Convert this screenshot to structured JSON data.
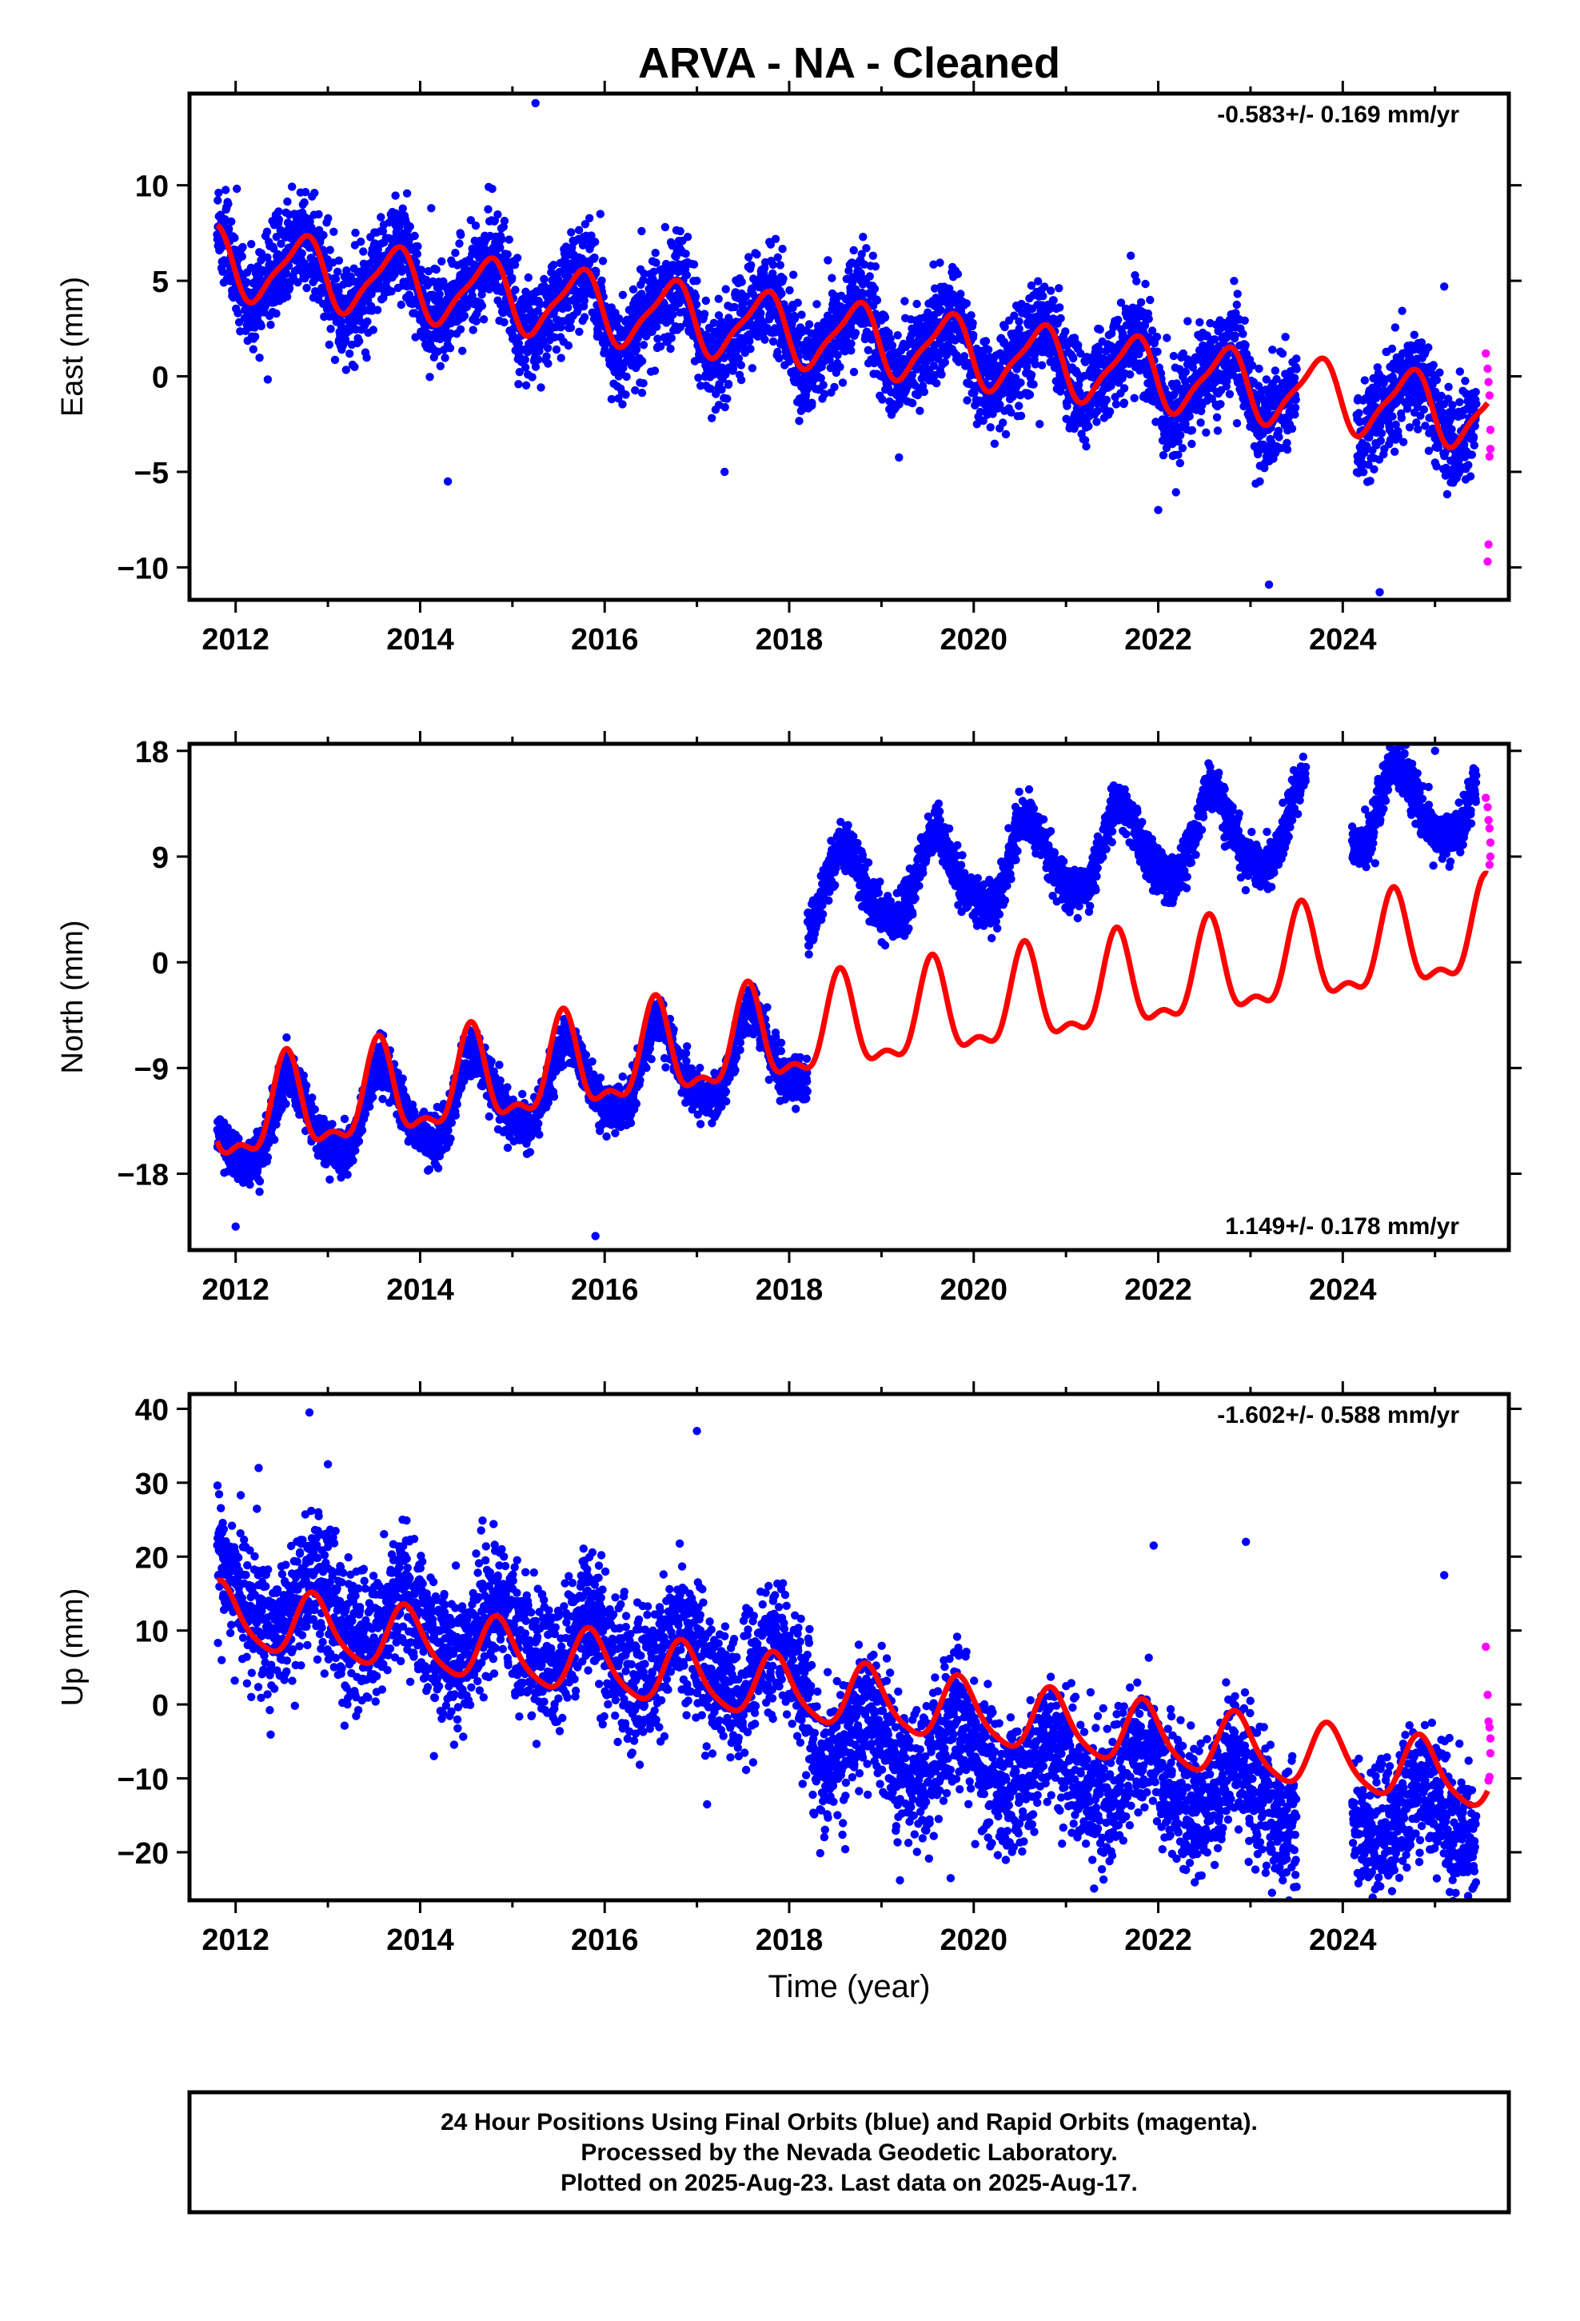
{
  "title": "ARVA  - NA - Cleaned",
  "footer": {
    "line1": "24 Hour Positions Using Final Orbits (blue) and Rapid Orbits (magenta).",
    "line2": "Processed by the Nevada Geodetic Laboratory.",
    "line3": "Plotted on 2025-Aug-23. Last data on 2025-Aug-17."
  },
  "colors": {
    "final": "#0000ff",
    "rapid": "#ff00ff",
    "model": "#ff0000",
    "frame": "#000000"
  },
  "chart_data": [
    {
      "type": "scatter",
      "panel": "east",
      "ylabel": "East (mm)",
      "xlabel": "",
      "rate_label": "-0.583+/- 0.169 mm/yr",
      "rate_position": "top-right",
      "xlim": [
        2011.5,
        2025.8
      ],
      "ylim": [
        -11.7,
        14.8
      ],
      "xticks": [
        2012,
        2014,
        2016,
        2018,
        2020,
        2022,
        2024
      ],
      "xtick_labels": [
        "2012",
        "2014",
        "2016",
        "2018",
        "2020",
        "2022",
        "2024"
      ],
      "yticks": [
        -10,
        -5,
        0,
        5,
        10
      ],
      "ytick_labels": [
        "−10",
        "−5",
        "0",
        "5",
        "10"
      ],
      "data_span": [
        2011.8,
        2025.45
      ],
      "gaps": [
        [
          2023.5,
          2024.15
        ]
      ],
      "model": {
        "offset_2018": 2.4,
        "rate_mm_yr": -0.583,
        "annual_amp": 1.75,
        "annual_phase_year": 0.72,
        "semiannual_amp": 0.45,
        "semiannual_phase_year": 0.35,
        "steps": []
      },
      "scatter_std": 1.3,
      "outliers": [
        [
          2015.25,
          14.3
        ],
        [
          2013.7,
          8.6
        ],
        [
          2014.12,
          8.8
        ],
        [
          2016.4,
          7.6
        ],
        [
          2016.9,
          7.3
        ],
        [
          2017.8,
          6.9
        ],
        [
          2018.8,
          7.3
        ],
        [
          2020.75,
          4.2
        ],
        [
          2025.1,
          4.7
        ],
        [
          2014.3,
          -5.5
        ],
        [
          2017.3,
          -5.0
        ],
        [
          2022.0,
          -7.0
        ],
        [
          2023.2,
          -10.9
        ],
        [
          2024.4,
          -11.3
        ]
      ],
      "rapid": {
        "x": [
          2025.55,
          2025.57,
          2025.58,
          2025.59,
          2025.6,
          2025.6,
          2025.59,
          2025.58,
          2025.57
        ],
        "y": [
          1.2,
          0.4,
          -0.3,
          -1.0,
          -2.8,
          -3.8,
          -4.2,
          -8.8,
          -9.7
        ]
      }
    },
    {
      "type": "scatter",
      "panel": "north",
      "ylabel": "North (mm)",
      "xlabel": "",
      "rate_label": "1.149+/- 0.178 mm/yr",
      "rate_position": "bottom-right",
      "xlim": [
        2011.5,
        2025.8
      ],
      "ylim": [
        -24.5,
        18.6
      ],
      "xticks": [
        2012,
        2014,
        2016,
        2018,
        2020,
        2022,
        2024
      ],
      "xtick_labels": [
        "2012",
        "2014",
        "2016",
        "2018",
        "2020",
        "2022",
        "2024"
      ],
      "yticks": [
        -18,
        -9,
        0,
        9,
        18
      ],
      "ytick_labels": [
        "−18",
        "−9",
        "0",
        "9",
        "18"
      ],
      "data_span": [
        2011.8,
        2025.45
      ],
      "gaps": [
        [
          2023.6,
          2024.1
        ]
      ],
      "model": {
        "offset_2018": -6.5,
        "rate_mm_yr": 1.149,
        "annual_amp": 3.8,
        "annual_phase_year": 0.55,
        "semiannual_amp": 1.6,
        "semiannual_phase_year": 0.05,
        "steps": []
      },
      "data_model": {
        "offset_2018": -7.6,
        "rate_mm_yr": 1.149,
        "annual_amp": 3.4,
        "annual_phase_year": 0.6,
        "semiannual_amp": 0.6,
        "semiannual_phase_year": 0.05,
        "steps": [
          [
            2018.2,
            13.0
          ]
        ]
      },
      "scatter_std": 1.0,
      "outliers": [
        [
          2025.0,
          18.0
        ],
        [
          2015.9,
          -23.3
        ],
        [
          2012.0,
          -22.5
        ]
      ],
      "rapid": {
        "x": [
          2025.55,
          2025.57,
          2025.58,
          2025.59,
          2025.6,
          2025.6,
          2025.59
        ],
        "y": [
          14.0,
          13.2,
          12.1,
          11.4,
          10.2,
          9.0,
          8.3
        ]
      }
    },
    {
      "type": "scatter",
      "panel": "up",
      "ylabel": "Up (mm)",
      "xlabel": "Time (year)",
      "rate_label": "-1.602+/- 0.588 mm/yr",
      "rate_position": "top-right",
      "xlim": [
        2011.5,
        2025.8
      ],
      "ylim": [
        -26.5,
        42.0
      ],
      "xticks": [
        2012,
        2014,
        2016,
        2018,
        2020,
        2022,
        2024
      ],
      "xtick_labels": [
        "2012",
        "2014",
        "2016",
        "2018",
        "2020",
        "2022",
        "2024"
      ],
      "yticks": [
        -20,
        -10,
        0,
        10,
        20,
        30,
        40
      ],
      "ytick_labels": [
        "−20",
        "−10",
        "0",
        "10",
        "20",
        "30",
        "40"
      ],
      "data_span": [
        2011.8,
        2025.45
      ],
      "gaps": [
        [
          2023.5,
          2024.1
        ]
      ],
      "model": {
        "offset_2018": 2.0,
        "rate_mm_yr": -1.602,
        "annual_amp": 4.2,
        "annual_phase_year": 0.85,
        "semiannual_amp": 0.8,
        "semiannual_phase_year": 0.3,
        "steps": []
      },
      "data_model": {
        "offset_2018": 4.0,
        "rate_mm_yr": -1.602,
        "annual_amp": 4.0,
        "annual_phase_year": 0.85,
        "semiannual_amp": 0.6,
        "semiannual_phase_year": 0.3,
        "steps": [
          [
            2018.25,
            -8.0
          ]
        ]
      },
      "scatter_std": 4.5,
      "outliers": [
        [
          2012.8,
          39.5
        ],
        [
          2017.0,
          37.0
        ],
        [
          2012.25,
          32.0
        ],
        [
          2013.0,
          32.5
        ],
        [
          2021.95,
          21.5
        ],
        [
          2022.95,
          22.0
        ],
        [
          2025.1,
          17.5
        ],
        [
          2024.35,
          -25.0
        ],
        [
          2023.35,
          -23.8
        ],
        [
          2019.2,
          -23.8
        ],
        [
          2019.75,
          -23.5
        ]
      ],
      "rapid": {
        "x": [
          2025.55,
          2025.57,
          2025.58,
          2025.59,
          2025.6,
          2025.6,
          2025.59,
          2025.58
        ],
        "y": [
          7.8,
          1.3,
          -2.3,
          -3.1,
          -4.6,
          -6.6,
          -9.8,
          -10.3
        ]
      }
    }
  ]
}
